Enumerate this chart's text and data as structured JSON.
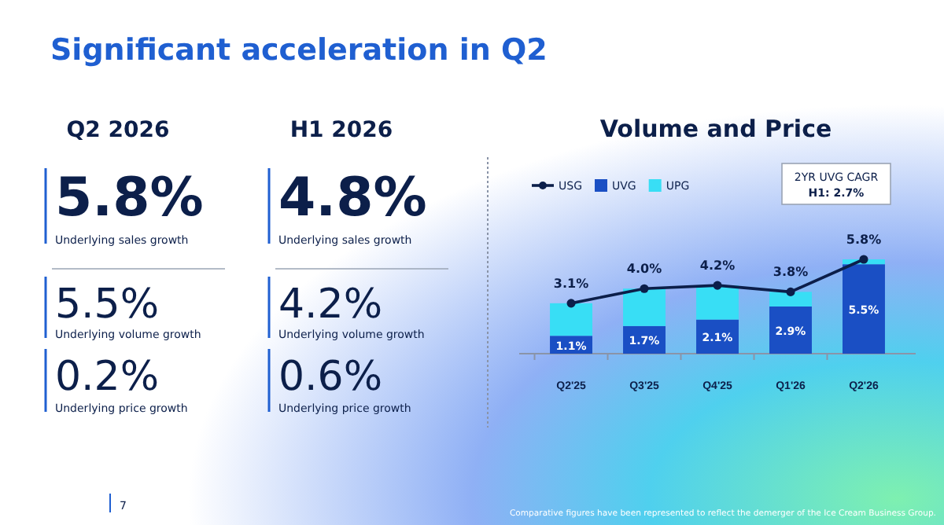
{
  "chart_data": [
    {
      "type": "other",
      "title": "Significant acceleration in Q2",
      "annotations": [
        "Q2 2026",
        "5.8%",
        "Underlying sales growth",
        "5.5%",
        "Underlying volume growth",
        "0.2%",
        "Underlying price growth",
        "H1 2026",
        "4.8%",
        "Underlying sales growth",
        "4.2%",
        "Underlying volume growth",
        "0.6%",
        "Underlying price growth",
        "7"
      ]
    },
    {
      "type": "bar",
      "title": "Volume and Price",
      "stacked": true,
      "categories": [
        "Q2'25",
        "Q3'25",
        "Q4'25",
        "Q1'26",
        "Q2'26"
      ],
      "series": [
        {
          "name": "UVG",
          "color": "#1a4fc4",
          "values": [
            1.1,
            1.7,
            2.1,
            2.9,
            5.5
          ],
          "value_labels": [
            "1.1%",
            "1.7%",
            "2.1%",
            "2.9%",
            "5.5%"
          ]
        },
        {
          "name": "UPG",
          "color": "#38def5",
          "values": [
            2.0,
            2.3,
            2.1,
            0.9,
            0.3
          ]
        },
        {
          "name": "USG",
          "type": "line",
          "color": "#0c1f4a",
          "values": [
            3.1,
            4.0,
            4.2,
            3.8,
            5.8
          ],
          "value_labels": [
            "3.1%",
            "4.0%",
            "4.2%",
            "3.8%",
            "5.8%"
          ]
        }
      ],
      "marker": "circle",
      "legend": "top left",
      "tick_labels": "x",
      "annotations": [
        "2YR UVG CAGR",
        "H1: 2.7%",
        "Comparative figures have been represented to reflect the demerger of the Ice Cream Business Group."
      ]
    }
  ]
}
